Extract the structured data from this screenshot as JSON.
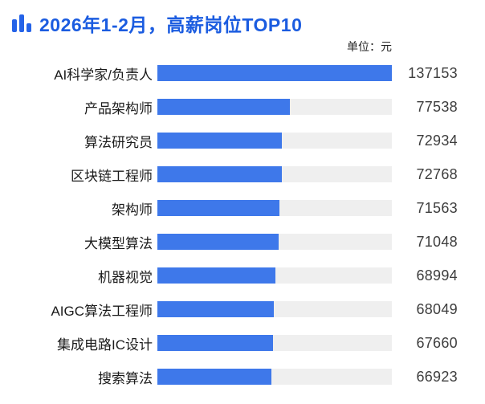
{
  "header": {
    "icon": "bar-chart-icon",
    "title": "2026年1-2月，高薪岗位TOP10"
  },
  "unit_label": "单位：元",
  "colors": {
    "title_blue": "#1b5ce0",
    "bar_blue": "#3e78ea",
    "bar_track_gray": "#efefef",
    "label_text": "#1b1b1b",
    "value_text": "#3d3d3d"
  },
  "chart_data": {
    "type": "bar",
    "orientation": "horizontal",
    "title": "2026年1-2月，高薪岗位TOP10",
    "unit": "元",
    "categories": [
      "AI科学家/负责人",
      "产品架构师",
      "算法研究员",
      "区块链工程师",
      "架构师",
      "大模型算法",
      "机器视觉",
      "AIGC算法工程师",
      "集成电路IC设计",
      "搜索算法"
    ],
    "values": [
      137153,
      77538,
      72934,
      72768,
      71563,
      71048,
      68994,
      68049,
      67660,
      66923
    ],
    "xlim": [
      0,
      137153
    ],
    "value_labels_shown": true,
    "grid": false,
    "legend": false
  }
}
